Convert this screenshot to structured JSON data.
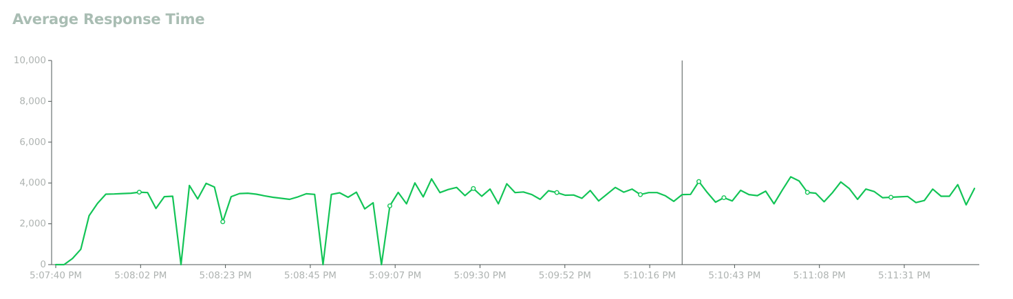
{
  "colors": {
    "title": "#a9bdb3",
    "line": "#12c456",
    "axis": "#4d5554",
    "tick_label": "#aeb3b1",
    "crosshair": "#4d5554"
  },
  "chart_data": {
    "type": "line",
    "title": "Average Response Time",
    "xlabel": "",
    "ylabel": "",
    "ylim": [
      0,
      10000
    ],
    "y_ticks": [
      "0",
      "2,000",
      "4,000",
      "6,000",
      "8,000",
      "10,000"
    ],
    "x_tick_labels": [
      "5:07:40 PM",
      "5:08:02 PM",
      "5:08:23 PM",
      "5:08:45 PM",
      "5:09:07 PM",
      "5:09:30 PM",
      "5:09:52 PM",
      "5:10:16 PM",
      "5:10:43 PM",
      "5:11:08 PM",
      "5:11:31 PM"
    ],
    "grid": false,
    "legend": "none",
    "crosshair_index": 75,
    "series": [
      {
        "values": [
          0,
          0,
          300,
          750,
          2400,
          3000,
          3450,
          3460,
          3480,
          3500,
          3550,
          3530,
          2750,
          3330,
          3350,
          0,
          3880,
          3220,
          3980,
          3800,
          2100,
          3330,
          3480,
          3500,
          3450,
          3370,
          3300,
          3250,
          3200,
          3320,
          3470,
          3440,
          0,
          3440,
          3520,
          3300,
          3550,
          2730,
          3030,
          0,
          2880,
          3540,
          2980,
          4000,
          3320,
          4200,
          3530,
          3680,
          3780,
          3380,
          3730,
          3350,
          3700,
          2980,
          3960,
          3530,
          3560,
          3430,
          3200,
          3620,
          3530,
          3400,
          3410,
          3250,
          3630,
          3120,
          3450,
          3780,
          3550,
          3700,
          3430,
          3530,
          3530,
          3370,
          3100,
          3430,
          3440,
          4070,
          3540,
          3060,
          3280,
          3120,
          3640,
          3430,
          3380,
          3600,
          2980,
          3660,
          4300,
          4100,
          3540,
          3500,
          3080,
          3530,
          4050,
          3730,
          3200,
          3700,
          3580,
          3280,
          3300,
          3320,
          3340,
          3040,
          3140,
          3700,
          3350,
          3350,
          3920,
          2930,
          3730
        ],
        "markers": [
          10,
          20,
          40,
          50,
          60,
          70,
          77,
          80,
          90,
          100
        ]
      }
    ]
  }
}
